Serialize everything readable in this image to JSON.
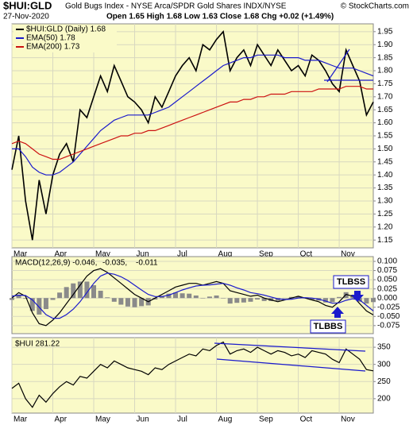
{
  "chart_data": [
    {
      "type": "line",
      "title": "$HUI:GLD",
      "subtitle": "Gold Bugs Index - NYSE Arca/SPDR Gold Shares INDX/NYSE",
      "source": "© StockCharts.com",
      "date": "27-Nov-2020",
      "quote": "Open 1.65 High 1.68 Low 1.63 Close 1.68 Chg +0.02 (+1.49%)",
      "xlim": [
        0,
        53
      ],
      "xticks": [
        {
          "value": 0,
          "label": "Mar"
        },
        {
          "value": 6,
          "label": "Apr"
        },
        {
          "value": 12,
          "label": "May"
        },
        {
          "value": 18,
          "label": "Jun"
        },
        {
          "value": 24,
          "label": "Jul"
        },
        {
          "value": 30,
          "label": "Aug"
        },
        {
          "value": 36,
          "label": "Sep"
        },
        {
          "value": 42,
          "label": "Oct"
        },
        {
          "value": 48,
          "label": "Nov"
        }
      ],
      "ylim": [
        1.12,
        1.98
      ],
      "yticks": [
        1.15,
        {
          "value": 1.2,
          "label": "1.20"
        },
        1.25,
        {
          "value": 1.3,
          "label": "1.30"
        },
        1.35,
        {
          "value": 1.4,
          "label": "1.40"
        },
        1.45,
        {
          "value": 1.5,
          "label": "1.50"
        },
        1.55,
        {
          "value": 1.6,
          "label": "1.60"
        },
        1.65,
        {
          "value": 1.7,
          "label": "1.70"
        },
        1.75,
        {
          "value": 1.8,
          "label": "1.80"
        },
        1.85,
        {
          "value": 1.9,
          "label": "1.90"
        },
        1.95
      ],
      "grid": true,
      "series": [
        {
          "name": "$HUI:GLD (Daily) 1.68",
          "color": "#000000",
          "values": [
            1.42,
            1.55,
            1.3,
            1.15,
            1.38,
            1.25,
            1.4,
            1.48,
            1.52,
            1.45,
            1.65,
            1.62,
            1.7,
            1.78,
            1.72,
            1.82,
            1.76,
            1.7,
            1.68,
            1.65,
            1.6,
            1.7,
            1.66,
            1.72,
            1.78,
            1.82,
            1.85,
            1.8,
            1.9,
            1.88,
            1.92,
            1.95,
            1.8,
            1.85,
            1.88,
            1.82,
            1.9,
            1.86,
            1.82,
            1.88,
            1.84,
            1.8,
            1.82,
            1.78,
            1.86,
            1.84,
            1.8,
            1.75,
            1.72,
            1.88,
            1.82,
            1.76,
            1.63,
            1.68
          ]
        },
        {
          "name": "EMA(50) 1.78",
          "color": "#1a1acc",
          "values": [
            1.5,
            1.5,
            1.47,
            1.43,
            1.41,
            1.4,
            1.4,
            1.41,
            1.43,
            1.45,
            1.48,
            1.51,
            1.54,
            1.57,
            1.59,
            1.61,
            1.62,
            1.63,
            1.63,
            1.63,
            1.63,
            1.64,
            1.65,
            1.66,
            1.68,
            1.7,
            1.72,
            1.74,
            1.76,
            1.78,
            1.8,
            1.82,
            1.83,
            1.84,
            1.85,
            1.85,
            1.86,
            1.86,
            1.86,
            1.86,
            1.85,
            1.85,
            1.85,
            1.84,
            1.84,
            1.84,
            1.83,
            1.82,
            1.81,
            1.81,
            1.81,
            1.8,
            1.79,
            1.78
          ]
        },
        {
          "name": "EMA(200) 1.73",
          "color": "#cc1111",
          "values": [
            1.52,
            1.53,
            1.52,
            1.5,
            1.48,
            1.47,
            1.46,
            1.46,
            1.47,
            1.48,
            1.49,
            1.5,
            1.51,
            1.52,
            1.53,
            1.54,
            1.55,
            1.55,
            1.56,
            1.56,
            1.57,
            1.57,
            1.58,
            1.59,
            1.6,
            1.61,
            1.62,
            1.63,
            1.64,
            1.65,
            1.66,
            1.67,
            1.68,
            1.68,
            1.69,
            1.69,
            1.7,
            1.7,
            1.71,
            1.71,
            1.71,
            1.72,
            1.72,
            1.72,
            1.72,
            1.73,
            1.73,
            1.73,
            1.73,
            1.74,
            1.74,
            1.74,
            1.73,
            1.73
          ]
        }
      ]
    },
    {
      "type": "line",
      "xlim": [
        0,
        53
      ],
      "ylim": [
        -0.097,
        0.113
      ],
      "yticks": [
        -0.075,
        {
          "value": -0.05,
          "label": "-0.050"
        },
        -0.025,
        {
          "value": 0,
          "label": "0.000"
        },
        0.025,
        {
          "value": 0.05,
          "label": "0.050"
        },
        0.075,
        {
          "value": 0.1,
          "label": "0.100"
        }
      ],
      "grid": true,
      "annotations": [
        "TLBSS",
        "TLBBS"
      ],
      "series": [
        {
          "name": "-0.011",
          "type": "bar",
          "color": "#8a8a8a",
          "values": [
            -0.005,
            0.007,
            -0.002,
            -0.035,
            -0.045,
            -0.03,
            -0.005,
            0.015,
            0.03,
            0.04,
            0.045,
            0.045,
            0.035,
            0.02,
            0.002,
            -0.01,
            -0.018,
            -0.023,
            -0.025,
            -0.022,
            -0.02,
            -0.004,
            0.006,
            0.012,
            0.015,
            0.013,
            0.012,
            0.007,
            0.0,
            0.004,
            0.007,
            0.0,
            -0.015,
            -0.013,
            -0.012,
            -0.01,
            -0.004,
            -0.008,
            -0.008,
            -0.008,
            -0.001,
            0.003,
            0.005,
            -0.001,
            -0.005,
            -0.007,
            -0.012,
            -0.011,
            0.003,
            0.016,
            0.007,
            -0.01,
            -0.015,
            -0.011
          ]
        },
        {
          "name": "MACD(12,26,9) -0.046,",
          "color": "#000000",
          "values": [
            0.0,
            0.015,
            0.005,
            -0.04,
            -0.07,
            -0.075,
            -0.06,
            -0.04,
            -0.015,
            0.01,
            0.035,
            0.06,
            0.075,
            0.08,
            0.07,
            0.055,
            0.04,
            0.025,
            0.01,
            0.0,
            -0.01,
            0.0,
            0.01,
            0.02,
            0.03,
            0.035,
            0.04,
            0.04,
            0.035,
            0.04,
            0.045,
            0.04,
            0.02,
            0.015,
            0.01,
            0.005,
            0.008,
            0.0,
            -0.005,
            -0.01,
            -0.005,
            0.0,
            0.005,
            0.0,
            -0.005,
            -0.01,
            -0.02,
            -0.025,
            -0.01,
            0.01,
            0.005,
            -0.015,
            -0.035,
            -0.046
          ]
        },
        {
          "name": "-0.035,",
          "color": "#1a1acc",
          "values": [
            0.005,
            0.008,
            0.007,
            -0.005,
            -0.025,
            -0.045,
            -0.055,
            -0.055,
            -0.045,
            -0.03,
            -0.01,
            0.015,
            0.04,
            0.06,
            0.068,
            0.065,
            0.058,
            0.048,
            0.035,
            0.022,
            0.01,
            0.004,
            0.004,
            0.008,
            0.015,
            0.022,
            0.028,
            0.033,
            0.035,
            0.036,
            0.038,
            0.04,
            0.035,
            0.028,
            0.022,
            0.015,
            0.012,
            0.008,
            0.003,
            -0.002,
            -0.004,
            -0.003,
            0.0,
            0.001,
            0.0,
            -0.003,
            -0.008,
            -0.014,
            -0.013,
            -0.006,
            -0.002,
            -0.005,
            -0.02,
            -0.035
          ]
        }
      ]
    },
    {
      "type": "line",
      "xlim": [
        0,
        53
      ],
      "xticks": [
        {
          "value": 0,
          "label": "Mar"
        },
        {
          "value": 6,
          "label": "Apr"
        },
        {
          "value": 12,
          "label": "May"
        },
        {
          "value": 18,
          "label": "Jun"
        },
        {
          "value": 24,
          "label": "Jul"
        },
        {
          "value": 30,
          "label": "Aug"
        },
        {
          "value": 36,
          "label": "Sep"
        },
        {
          "value": 42,
          "label": "Oct"
        },
        {
          "value": 48,
          "label": "Nov"
        }
      ],
      "ylim": [
        158,
        378
      ],
      "yticks": [
        200,
        250,
        300,
        350
      ],
      "grid": true,
      "series": [
        {
          "name": "$HUI 281.22",
          "color": "#000000",
          "values": [
            230,
            245,
            200,
            175,
            210,
            190,
            215,
            235,
            250,
            240,
            265,
            260,
            280,
            300,
            290,
            310,
            300,
            290,
            285,
            280,
            270,
            290,
            285,
            300,
            310,
            320,
            330,
            325,
            345,
            340,
            355,
            365,
            330,
            340,
            345,
            335,
            350,
            340,
            330,
            340,
            335,
            325,
            330,
            320,
            340,
            335,
            330,
            315,
            305,
            345,
            330,
            315,
            285,
            281.22
          ]
        }
      ]
    }
  ]
}
